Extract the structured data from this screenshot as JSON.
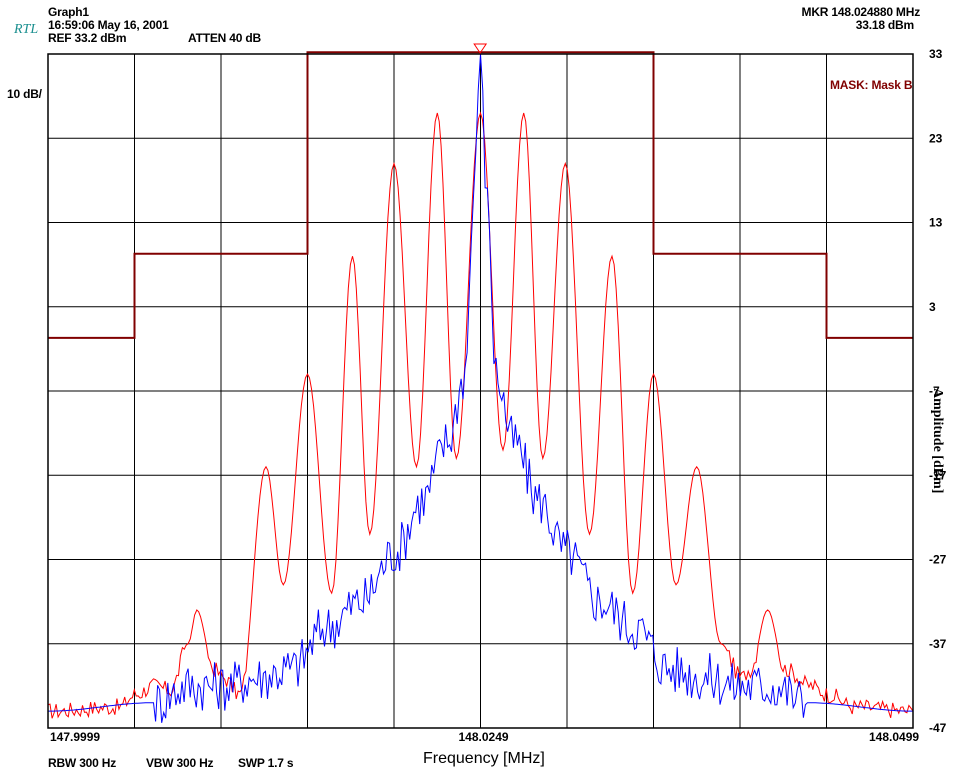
{
  "header": {
    "graph_name": "Graph1",
    "logo": "RTL",
    "timestamp": "16:59:06 May 16, 2001",
    "ref": "REF 33.2 dBm",
    "atten": "ATTEN 40 dB",
    "marker_freq": "MKR  148.024880 MHz",
    "marker_amp": "33.18 dBm",
    "scale": "10 dB/",
    "mask_label": "MASK: Mask B"
  },
  "footer": {
    "rbw": "RBW 300 Hz",
    "vbw": "VBW 300 Hz",
    "swp": "SWP 1.7 s"
  },
  "chart_data": {
    "type": "line",
    "title": "",
    "xlabel": "Frequency [MHz]",
    "ylabel": "Amplitude [dBm]",
    "xlim": [
      147.9999,
      148.0499
    ],
    "ylim": [
      -47,
      33
    ],
    "x_tick_labels": [
      "147.9999",
      "148.0249",
      "148.0499"
    ],
    "y_ticks": [
      33,
      23,
      13,
      3,
      -7,
      -17,
      -27,
      -37,
      -47
    ],
    "grid": true,
    "marker": {
      "x": 148.02488,
      "y": 33.18
    },
    "mask": {
      "name": "Mask B",
      "color": "#800000",
      "x": [
        147.9999,
        148.0049,
        148.0049,
        148.0149,
        148.0149,
        148.0349,
        148.0349,
        148.0449,
        148.0449,
        148.0499
      ],
      "y": [
        -0.7,
        -0.7,
        9.3,
        9.3,
        33.2,
        33.2,
        9.3,
        9.3,
        -0.7,
        -0.7
      ]
    },
    "series": [
      {
        "color": "#ff0000",
        "x": [
          147.9999,
          148.004,
          148.005,
          148.006,
          148.007,
          148.008,
          148.0085,
          148.0095,
          148.01,
          148.011,
          148.0125,
          148.0135,
          148.0149,
          148.0163,
          148.0175,
          148.0185,
          148.0199,
          148.0212,
          148.0224,
          148.0235,
          148.0249,
          148.0262,
          148.0274,
          148.0285,
          148.0298,
          148.0312,
          148.0325,
          148.0337,
          148.0349,
          148.0362,
          148.0374,
          148.0388,
          148.04,
          148.0405,
          148.0415,
          148.0425,
          148.044,
          148.045,
          148.0465,
          148.0499
        ],
        "y": [
          -45,
          -44.5,
          -43,
          -42,
          -42.5,
          -37,
          -33,
          -40,
          -41,
          -43,
          -16,
          -30,
          -5,
          -31,
          9,
          -24,
          20,
          -16,
          26,
          -15,
          26,
          -14,
          26,
          -15,
          20,
          -24,
          9,
          -31,
          -5,
          -30,
          -16,
          -37,
          -41,
          -40,
          -33,
          -40,
          -42,
          -43,
          -44.5,
          -45
        ]
      },
      {
        "color": "#0000ff",
        "x": [
          147.9999,
          148.006,
          148.008,
          148.01,
          148.012,
          148.014,
          148.016,
          148.018,
          148.02,
          148.0215,
          148.023,
          148.024,
          148.0245,
          148.0249,
          148.0253,
          148.0258,
          148.0268,
          148.0283,
          148.0298,
          148.0318,
          148.0338,
          148.0358,
          148.0378,
          148.0398,
          148.0418,
          148.0438,
          148.0499
        ],
        "y": [
          -45,
          -44,
          -42,
          -42,
          -41,
          -40,
          -35,
          -32,
          -26,
          -20,
          -13,
          -5,
          15,
          33.2,
          15,
          -5,
          -13,
          -20,
          -26,
          -32,
          -35,
          -40,
          -41,
          -42,
          -42,
          -44,
          -45
        ]
      }
    ]
  }
}
